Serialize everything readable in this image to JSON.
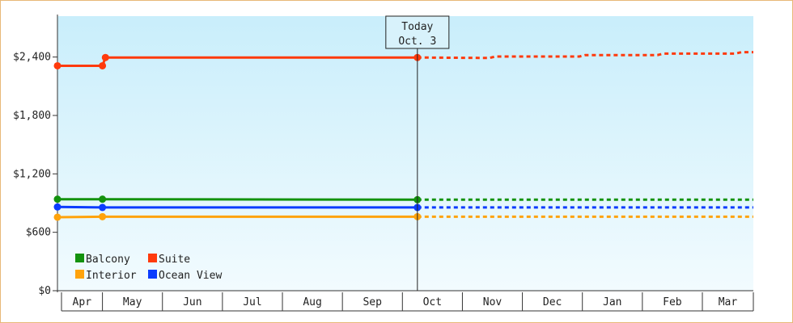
{
  "chart_data": {
    "type": "line",
    "x_labels": [
      "Apr",
      "May",
      "Jun",
      "Jul",
      "Aug",
      "Sep",
      "Oct",
      "Nov",
      "Dec",
      "Jan",
      "Feb",
      "Mar"
    ],
    "y_ticks": [
      0,
      600,
      1200,
      1800,
      2400
    ],
    "y_tick_labels": [
      "$0",
      "$600",
      "$1,200",
      "$1,800",
      "$2,400"
    ],
    "ylim": [
      0,
      2820
    ],
    "x_range": [
      0,
      11.6
    ],
    "today": {
      "x": 6.0,
      "label_line1": "Today",
      "label_line2": "Oct. 3"
    },
    "legend_position": "bottom-left",
    "series": [
      {
        "name": "Balcony",
        "color": "#13920e",
        "solid": [
          [
            0.0,
            940
          ],
          [
            0.75,
            940
          ],
          [
            6.0,
            935
          ]
        ],
        "markers": [
          [
            0.0,
            940
          ],
          [
            0.75,
            940
          ],
          [
            6.0,
            935
          ]
        ],
        "dotted": [
          [
            6.0,
            935
          ],
          [
            11.6,
            935
          ]
        ]
      },
      {
        "name": "Suite",
        "color": "#ff3a0c",
        "solid": [
          [
            0.0,
            2310
          ],
          [
            0.75,
            2310
          ],
          [
            0.8,
            2395
          ],
          [
            6.0,
            2395
          ]
        ],
        "markers": [
          [
            0.0,
            2310
          ],
          [
            0.75,
            2310
          ],
          [
            0.8,
            2395
          ],
          [
            6.0,
            2395
          ]
        ],
        "dotted": [
          [
            6.0,
            2395
          ],
          [
            7.2,
            2390
          ],
          [
            7.3,
            2405
          ],
          [
            8.7,
            2405
          ],
          [
            8.8,
            2420
          ],
          [
            10.0,
            2420
          ],
          [
            10.1,
            2435
          ],
          [
            11.3,
            2435
          ],
          [
            11.4,
            2450
          ],
          [
            11.6,
            2450
          ]
        ]
      },
      {
        "name": "Interior",
        "color": "#ffa30c",
        "solid": [
          [
            0.0,
            755
          ],
          [
            0.75,
            760
          ],
          [
            6.0,
            760
          ]
        ],
        "markers": [
          [
            0.0,
            755
          ],
          [
            0.75,
            760
          ],
          [
            6.0,
            760
          ]
        ],
        "dotted": [
          [
            6.0,
            760
          ],
          [
            11.6,
            760
          ]
        ]
      },
      {
        "name": "Ocean View",
        "color": "#0b3cfe",
        "solid": [
          [
            0.0,
            860
          ],
          [
            0.75,
            855
          ],
          [
            6.0,
            855
          ]
        ],
        "markers": [
          [
            0.0,
            860
          ],
          [
            0.75,
            855
          ],
          [
            6.0,
            855
          ]
        ],
        "dotted": [
          [
            6.0,
            855
          ],
          [
            11.6,
            855
          ]
        ]
      }
    ],
    "legend": [
      {
        "name": "Balcony",
        "color": "#13920e"
      },
      {
        "name": "Suite",
        "color": "#ff3a0c"
      },
      {
        "name": "Interior",
        "color": "#ffa30c"
      },
      {
        "name": "Ocean View",
        "color": "#0b3cfe"
      }
    ],
    "colors": {
      "bg_top": "#c9eefb",
      "bg_bottom": "#f2fbfe",
      "frame_border": "#e8b878",
      "axis": "#333333",
      "annotation_bg": "#d8f2fb"
    }
  }
}
